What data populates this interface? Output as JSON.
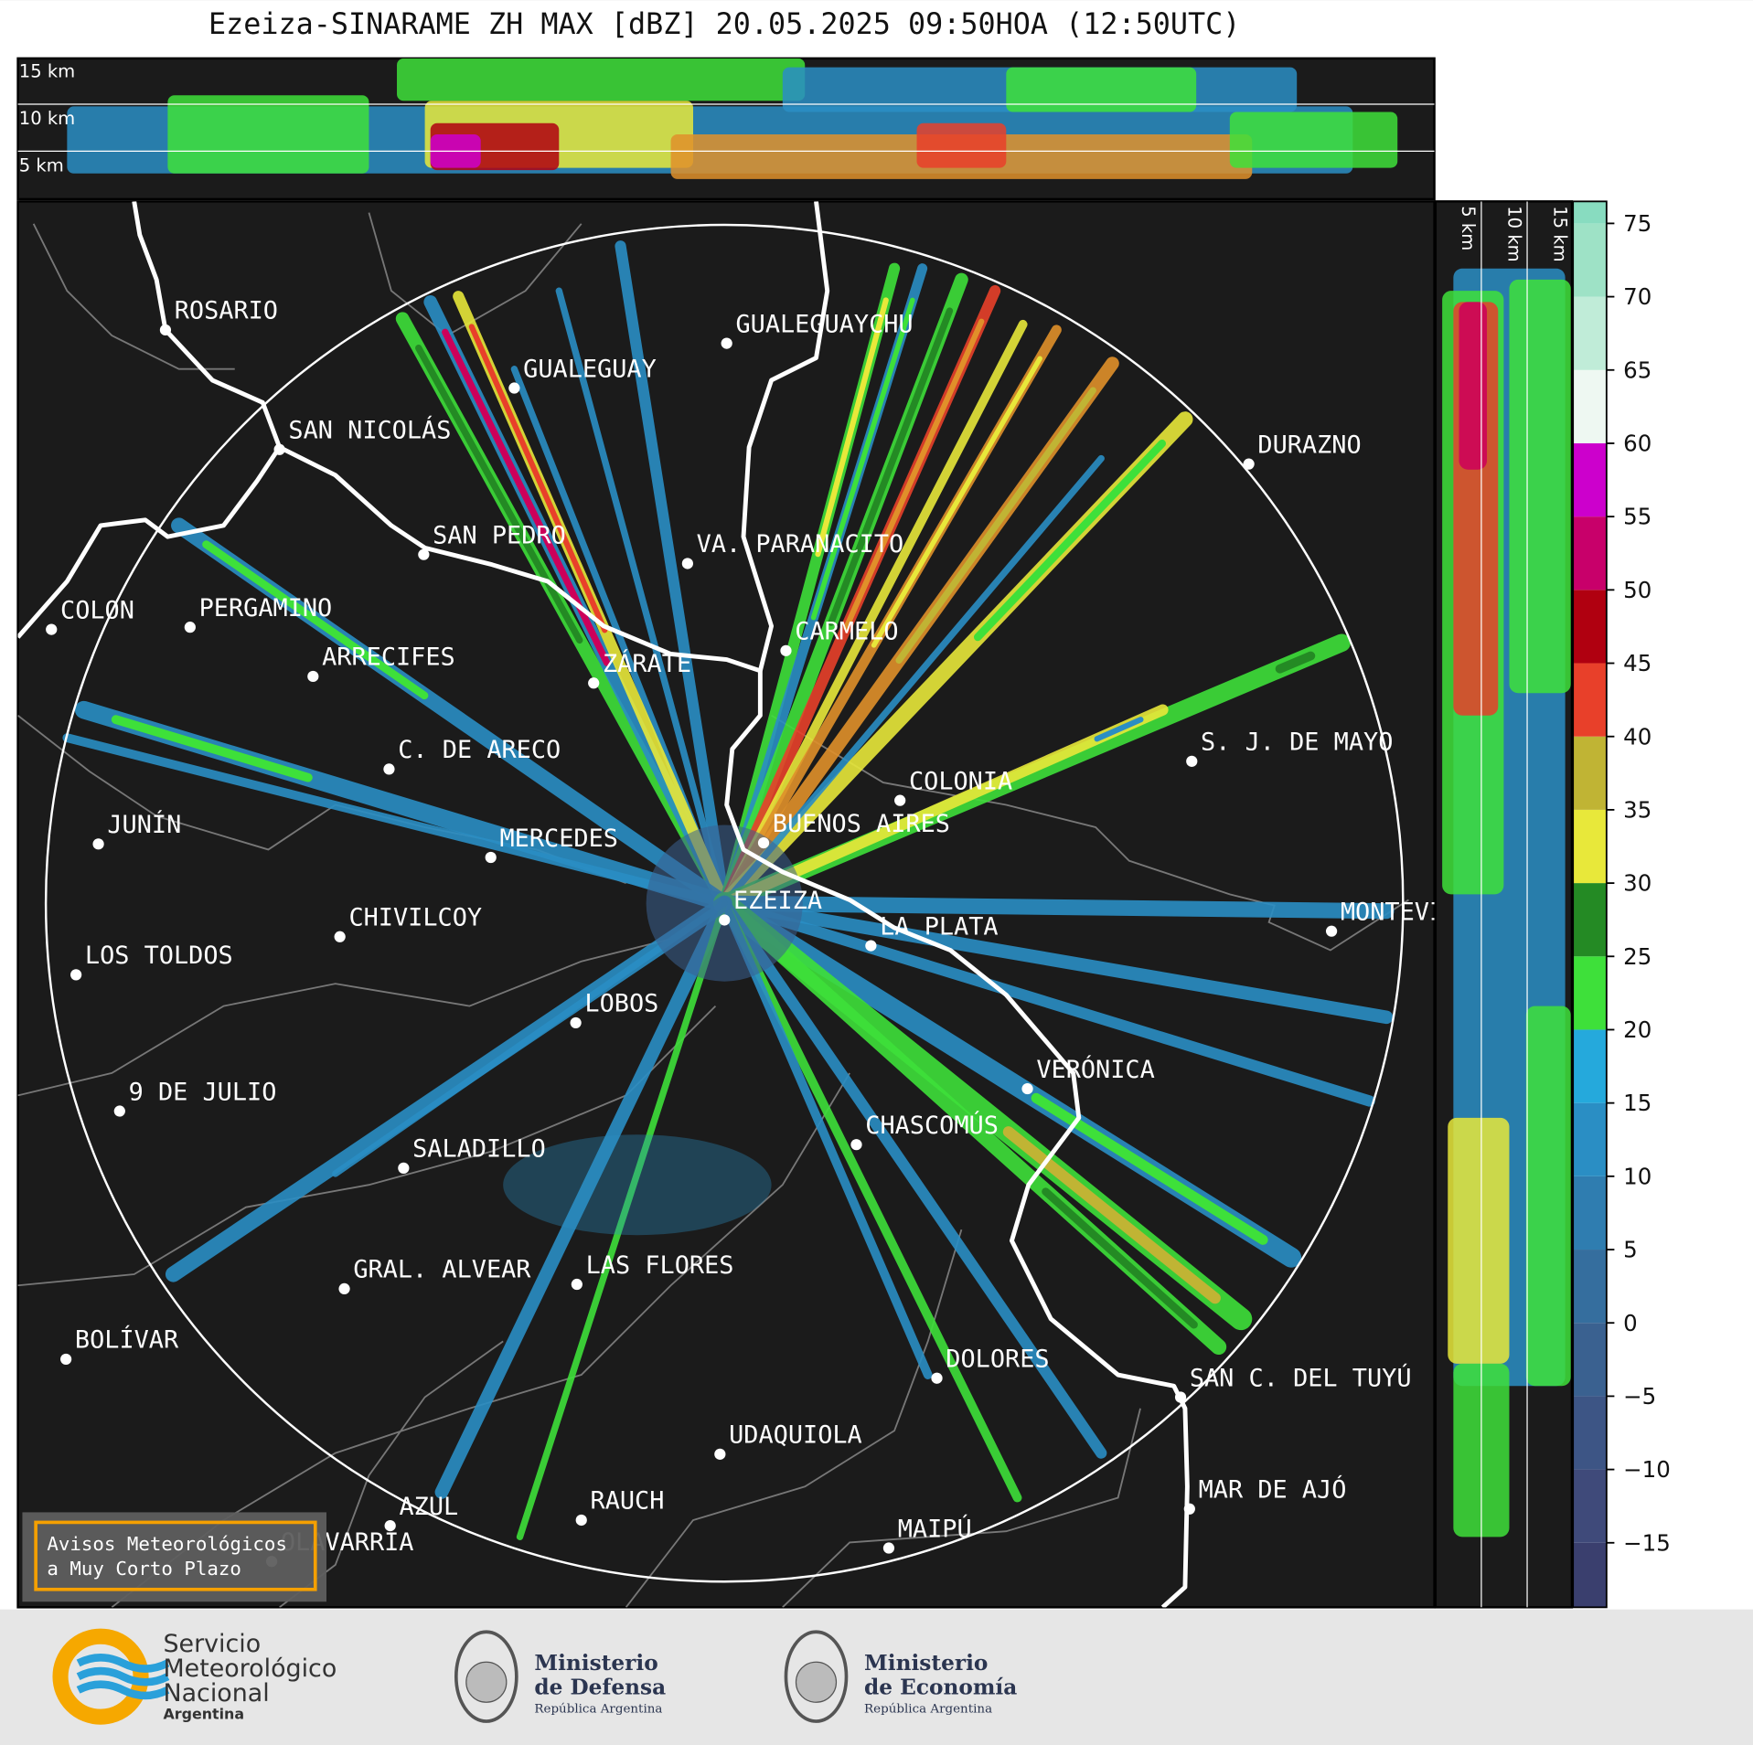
{
  "title": "Ezeiza-SINARAME ZH MAX [dBZ] 20.05.2025 09:50HOA (12:50UTC)",
  "cities": [
    "ROSARIO",
    "GUALEGUAYCHU",
    "GUALEGUAY",
    "SAN NICOLÁS",
    "DURAZNO",
    "SAN PEDRO",
    "VA. PARANACITO",
    "COLON",
    "PERGAMINO",
    "CARMELO",
    "ARRECIFES",
    "ZÁRATE",
    "S. J. DE MAYO",
    "C. DE ARECO",
    "COLONIA",
    "BUENOS AIRES",
    "JUNÍN",
    "MERCEDES",
    "EZEIZA",
    "MONTEVIDEO",
    "CHIVILCOY",
    "LA PLATA",
    "LOS TOLDOS",
    "LOBOS",
    "VERÓNICA",
    "9 DE JULIO",
    "CHASCOMÚS",
    "SALADILLO",
    "LAS FLORES",
    "GRAL. ALVEAR",
    "BOLÍVAR",
    "DOLORES",
    "SAN C. DEL TUYÚ",
    "UDAQUIOLA",
    "MAR DE AJÓ",
    "AZUL",
    "RAUCH",
    "OLAVARRÍA",
    "MAIPÚ"
  ],
  "height_lim": [
    0,
    15
  ],
  "height_ticks": [
    {
      "value": 5,
      "label": "5 km"
    },
    {
      "value": 10,
      "label": "10 km"
    },
    {
      "value": 15,
      "label": "15 km"
    }
  ],
  "colorbar": {
    "lim": [
      -19.4,
      76.5
    ],
    "ticks": [
      {
        "value": -15,
        "label": "−15"
      },
      {
        "value": -10,
        "label": "−10"
      },
      {
        "value": -5,
        "label": "−5"
      },
      0,
      5,
      10,
      15,
      20,
      25,
      30,
      35,
      40,
      45,
      50,
      55,
      60,
      65,
      70,
      75
    ],
    "colors": [
      "#3a3f6e",
      "#3f4a7a",
      "#3d5585",
      "#3a6190",
      "#356e9e",
      "#2f7db0",
      "#2a8ec4",
      "#25a9dc",
      "#3ee03a",
      "#248a24",
      "#e8e83a",
      "#c0b434",
      "#e8402a",
      "#b00010",
      "#c8006a",
      "#cc00cc",
      "#eef8f2",
      "#c0ecd8",
      "#9ee2c6",
      "#88dcc0"
    ]
  },
  "warning_box": [
    "Avisos Meteorológicos",
    "a Muy Corto Plazo"
  ],
  "logos": {
    "smn": [
      "Servicio",
      "Meteorológico",
      "Nacional",
      "Argentina"
    ],
    "defensa": [
      "Ministerio",
      "de Defensa",
      "República Argentina"
    ],
    "economia": [
      "Ministerio",
      "de Economía",
      "República Argentina"
    ]
  }
}
